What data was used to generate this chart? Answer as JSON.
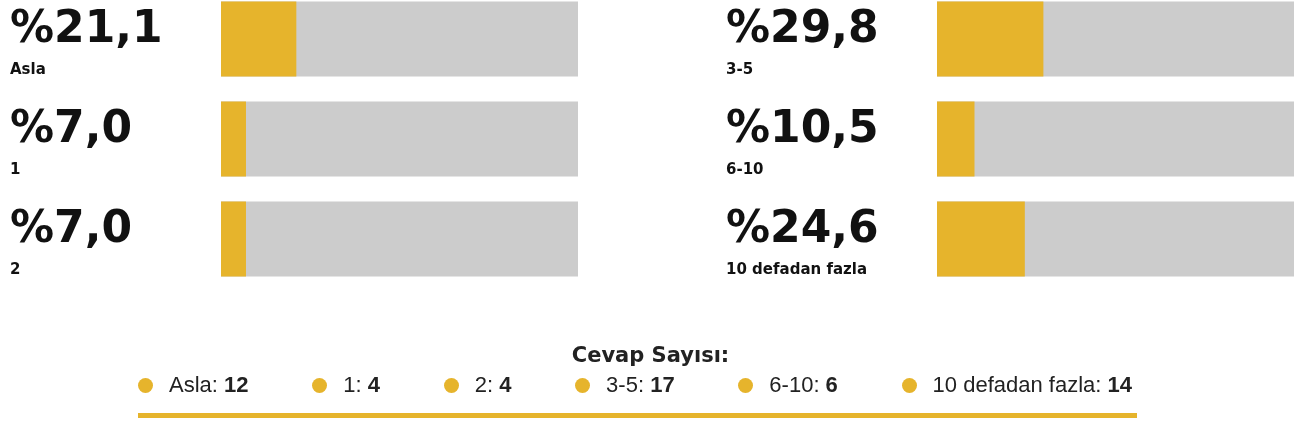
{
  "chart_data": [
    {
      "type": "bar",
      "orientation": "horizontal",
      "categories": [
        "Asla",
        "1",
        "2"
      ],
      "values": [
        21.1,
        7.0,
        7.0
      ],
      "value_labels": [
        "%21,1",
        "%7,0",
        "%7,0"
      ],
      "color": "#e6b42c",
      "xlim": [
        0,
        100
      ],
      "tick_labels": "y",
      "grid": false
    },
    {
      "type": "bar",
      "orientation": "horizontal",
      "categories": [
        "3-5",
        "6-10",
        "10 defadan fazla"
      ],
      "values": [
        29.8,
        10.5,
        24.6
      ],
      "value_labels": [
        "%29,8",
        "%10,5",
        "%24,6"
      ],
      "color": "#e6b42c",
      "xlim": [
        0,
        100
      ],
      "tick_labels": "y",
      "grid": false
    },
    {
      "type": "other",
      "title": "Cevap Sayısı:",
      "color": "#e6b42c",
      "annotations": [
        "Asla: 12",
        "1: 4",
        "2: 4",
        "3-5: 17",
        "6-10: 6",
        "10 defadan fazla: 14"
      ]
    }
  ]
}
